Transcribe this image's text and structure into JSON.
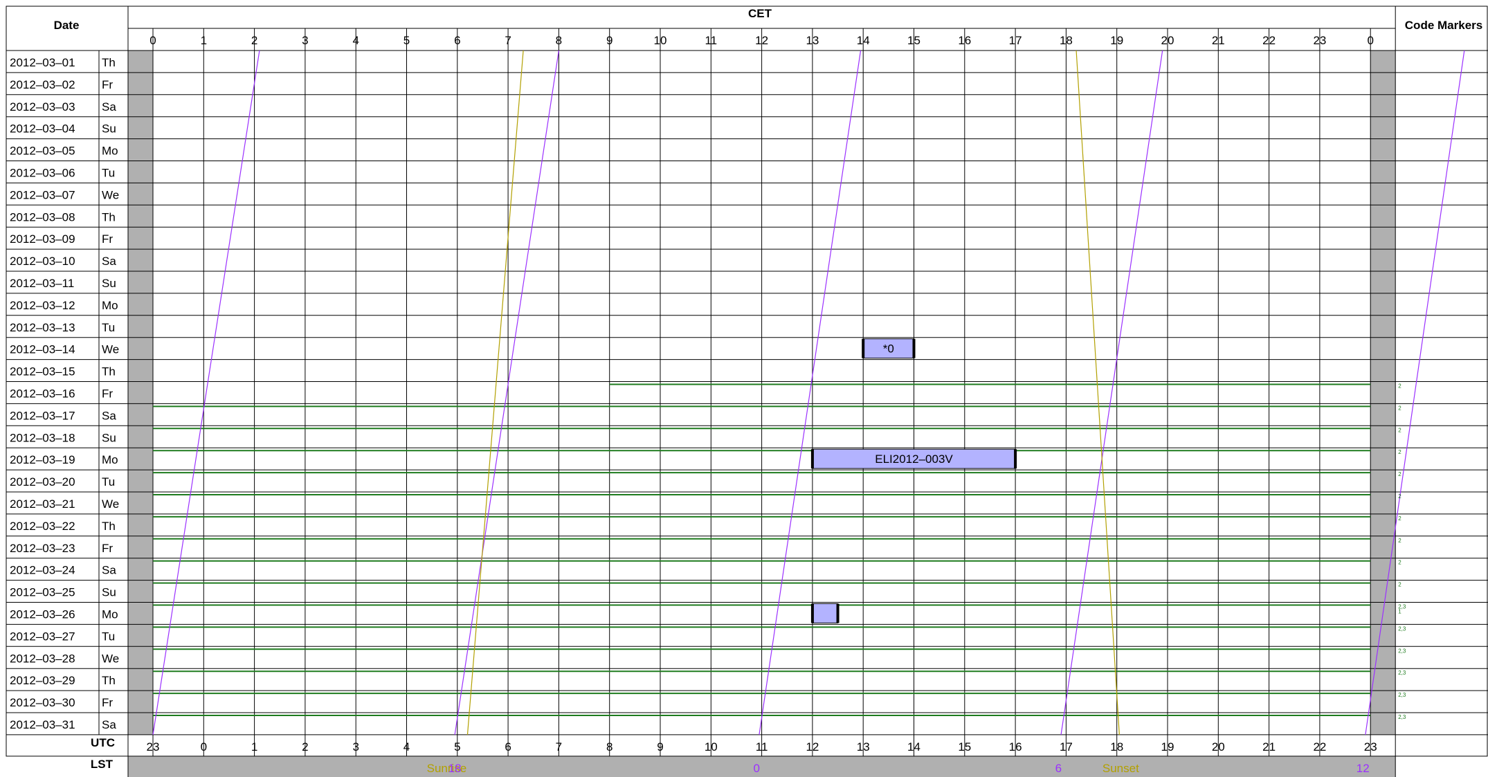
{
  "chart_data": {
    "type": "table",
    "title": "CET",
    "headers": {
      "date": "Date",
      "code_markers": "Code Markers",
      "utc": "UTC",
      "lst": "LST"
    },
    "cet_hours": [
      "0",
      "1",
      "2",
      "3",
      "4",
      "5",
      "6",
      "7",
      "8",
      "9",
      "10",
      "11",
      "12",
      "13",
      "14",
      "15",
      "16",
      "17",
      "18",
      "19",
      "20",
      "21",
      "22",
      "23",
      "0"
    ],
    "utc_hours": [
      "23",
      "0",
      "1",
      "2",
      "3",
      "4",
      "5",
      "6",
      "7",
      "8",
      "9",
      "10",
      "11",
      "12",
      "13",
      "14",
      "15",
      "16",
      "17",
      "18",
      "19",
      "20",
      "21",
      "22",
      "23"
    ],
    "rows": [
      {
        "date": "2012–03–01",
        "day": "Th"
      },
      {
        "date": "2012–03–02",
        "day": "Fr"
      },
      {
        "date": "2012–03–03",
        "day": "Sa"
      },
      {
        "date": "2012–03–04",
        "day": "Su"
      },
      {
        "date": "2012–03–05",
        "day": "Mo"
      },
      {
        "date": "2012–03–06",
        "day": "Tu"
      },
      {
        "date": "2012–03–07",
        "day": "We"
      },
      {
        "date": "2012–03–08",
        "day": "Th"
      },
      {
        "date": "2012–03–09",
        "day": "Fr"
      },
      {
        "date": "2012–03–10",
        "day": "Sa"
      },
      {
        "date": "2012–03–11",
        "day": "Su"
      },
      {
        "date": "2012–03–12",
        "day": "Mo"
      },
      {
        "date": "2012–03–13",
        "day": "Tu"
      },
      {
        "date": "2012–03–14",
        "day": "We"
      },
      {
        "date": "2012–03–15",
        "day": "Th"
      },
      {
        "date": "2012–03–16",
        "day": "Fr"
      },
      {
        "date": "2012–03–17",
        "day": "Sa"
      },
      {
        "date": "2012–03–18",
        "day": "Su"
      },
      {
        "date": "2012–03–19",
        "day": "Mo"
      },
      {
        "date": "2012–03–20",
        "day": "Tu"
      },
      {
        "date": "2012–03–21",
        "day": "We"
      },
      {
        "date": "2012–03–22",
        "day": "Th"
      },
      {
        "date": "2012–03–23",
        "day": "Fr"
      },
      {
        "date": "2012–03–24",
        "day": "Sa"
      },
      {
        "date": "2012–03–25",
        "day": "Su"
      },
      {
        "date": "2012–03–26",
        "day": "Mo"
      },
      {
        "date": "2012–03–27",
        "day": "Tu"
      },
      {
        "date": "2012–03–28",
        "day": "We"
      },
      {
        "date": "2012–03–29",
        "day": "Th"
      },
      {
        "date": "2012–03–30",
        "day": "Fr"
      },
      {
        "date": "2012–03–31",
        "day": "Sa"
      }
    ],
    "blocks": [
      {
        "row": 13,
        "start": 14.0,
        "end": 15.0,
        "label": "*0"
      },
      {
        "row": 18,
        "start": 13.0,
        "end": 17.0,
        "label": "ELI2012–003V"
      },
      {
        "row": 25,
        "start": 13.0,
        "end": 13.5,
        "label": ""
      }
    ],
    "green_lines": [
      {
        "row": 15,
        "start": 9.0,
        "end": 24.0
      },
      {
        "row": 16,
        "start": 0.0,
        "end": 24.0
      },
      {
        "row": 17,
        "start": 0.0,
        "end": 24.0
      },
      {
        "row": 18,
        "start": 0.0,
        "end": 24.0
      },
      {
        "row": 19,
        "start": 0.0,
        "end": 24.0
      },
      {
        "row": 20,
        "start": 0.0,
        "end": 24.0
      },
      {
        "row": 21,
        "start": 0.0,
        "end": 24.0
      },
      {
        "row": 22,
        "start": 0.0,
        "end": 24.0
      },
      {
        "row": 23,
        "start": 0.0,
        "end": 24.0
      },
      {
        "row": 24,
        "start": 0.0,
        "end": 24.0
      },
      {
        "row": 25,
        "start": 0.0,
        "end": 24.0
      },
      {
        "row": 26,
        "start": 0.0,
        "end": 24.0
      },
      {
        "row": 27,
        "start": 0.0,
        "end": 24.0
      },
      {
        "row": 28,
        "start": 0.0,
        "end": 24.0
      },
      {
        "row": 29,
        "start": 0.0,
        "end": 24.0
      },
      {
        "row": 30,
        "start": 0.0,
        "end": 24.0
      }
    ],
    "code_markers": [
      {
        "row": 15,
        "text": "2"
      },
      {
        "row": 16,
        "text": "2"
      },
      {
        "row": 17,
        "text": "2"
      },
      {
        "row": 18,
        "text": "2"
      },
      {
        "row": 19,
        "text": "2"
      },
      {
        "row": 20,
        "text": "2"
      },
      {
        "row": 21,
        "text": "2"
      },
      {
        "row": 22,
        "text": "2"
      },
      {
        "row": 23,
        "text": "2"
      },
      {
        "row": 24,
        "text": "2"
      },
      {
        "row": 25,
        "text": "2,3",
        "text2": "1"
      },
      {
        "row": 26,
        "text": "2,3"
      },
      {
        "row": 27,
        "text": "2,3"
      },
      {
        "row": 28,
        "text": "2,3"
      },
      {
        "row": 29,
        "text": "2,3"
      },
      {
        "row": 30,
        "text": "2,3"
      }
    ],
    "lst_lines": [
      {
        "top": 2.1,
        "bottom": 0.0
      },
      {
        "top": 8.0,
        "bottom": 5.95
      },
      {
        "top": 13.95,
        "bottom": 11.95
      },
      {
        "top": 19.9,
        "bottom": 17.9
      },
      {
        "top": 25.85,
        "bottom": 23.9
      }
    ],
    "sunrise": {
      "top": 7.3,
      "bottom": 6.2,
      "label": "Sunrise"
    },
    "sunset": {
      "top": 18.2,
      "bottom": 19.05,
      "label": "Sunset"
    },
    "lst_labels": [
      {
        "text": "18",
        "hour": 5.95
      },
      {
        "text": "0",
        "hour": 11.9
      },
      {
        "text": "6",
        "hour": 17.85
      },
      {
        "text": "12",
        "hour": 23.85
      }
    ],
    "colors": {
      "lst": "#9b30ff",
      "sun": "#b2a000",
      "green": "#1e7b1e",
      "block": "#b3b3ff",
      "grey": "#b0b0b0",
      "grid": "#000000"
    }
  }
}
